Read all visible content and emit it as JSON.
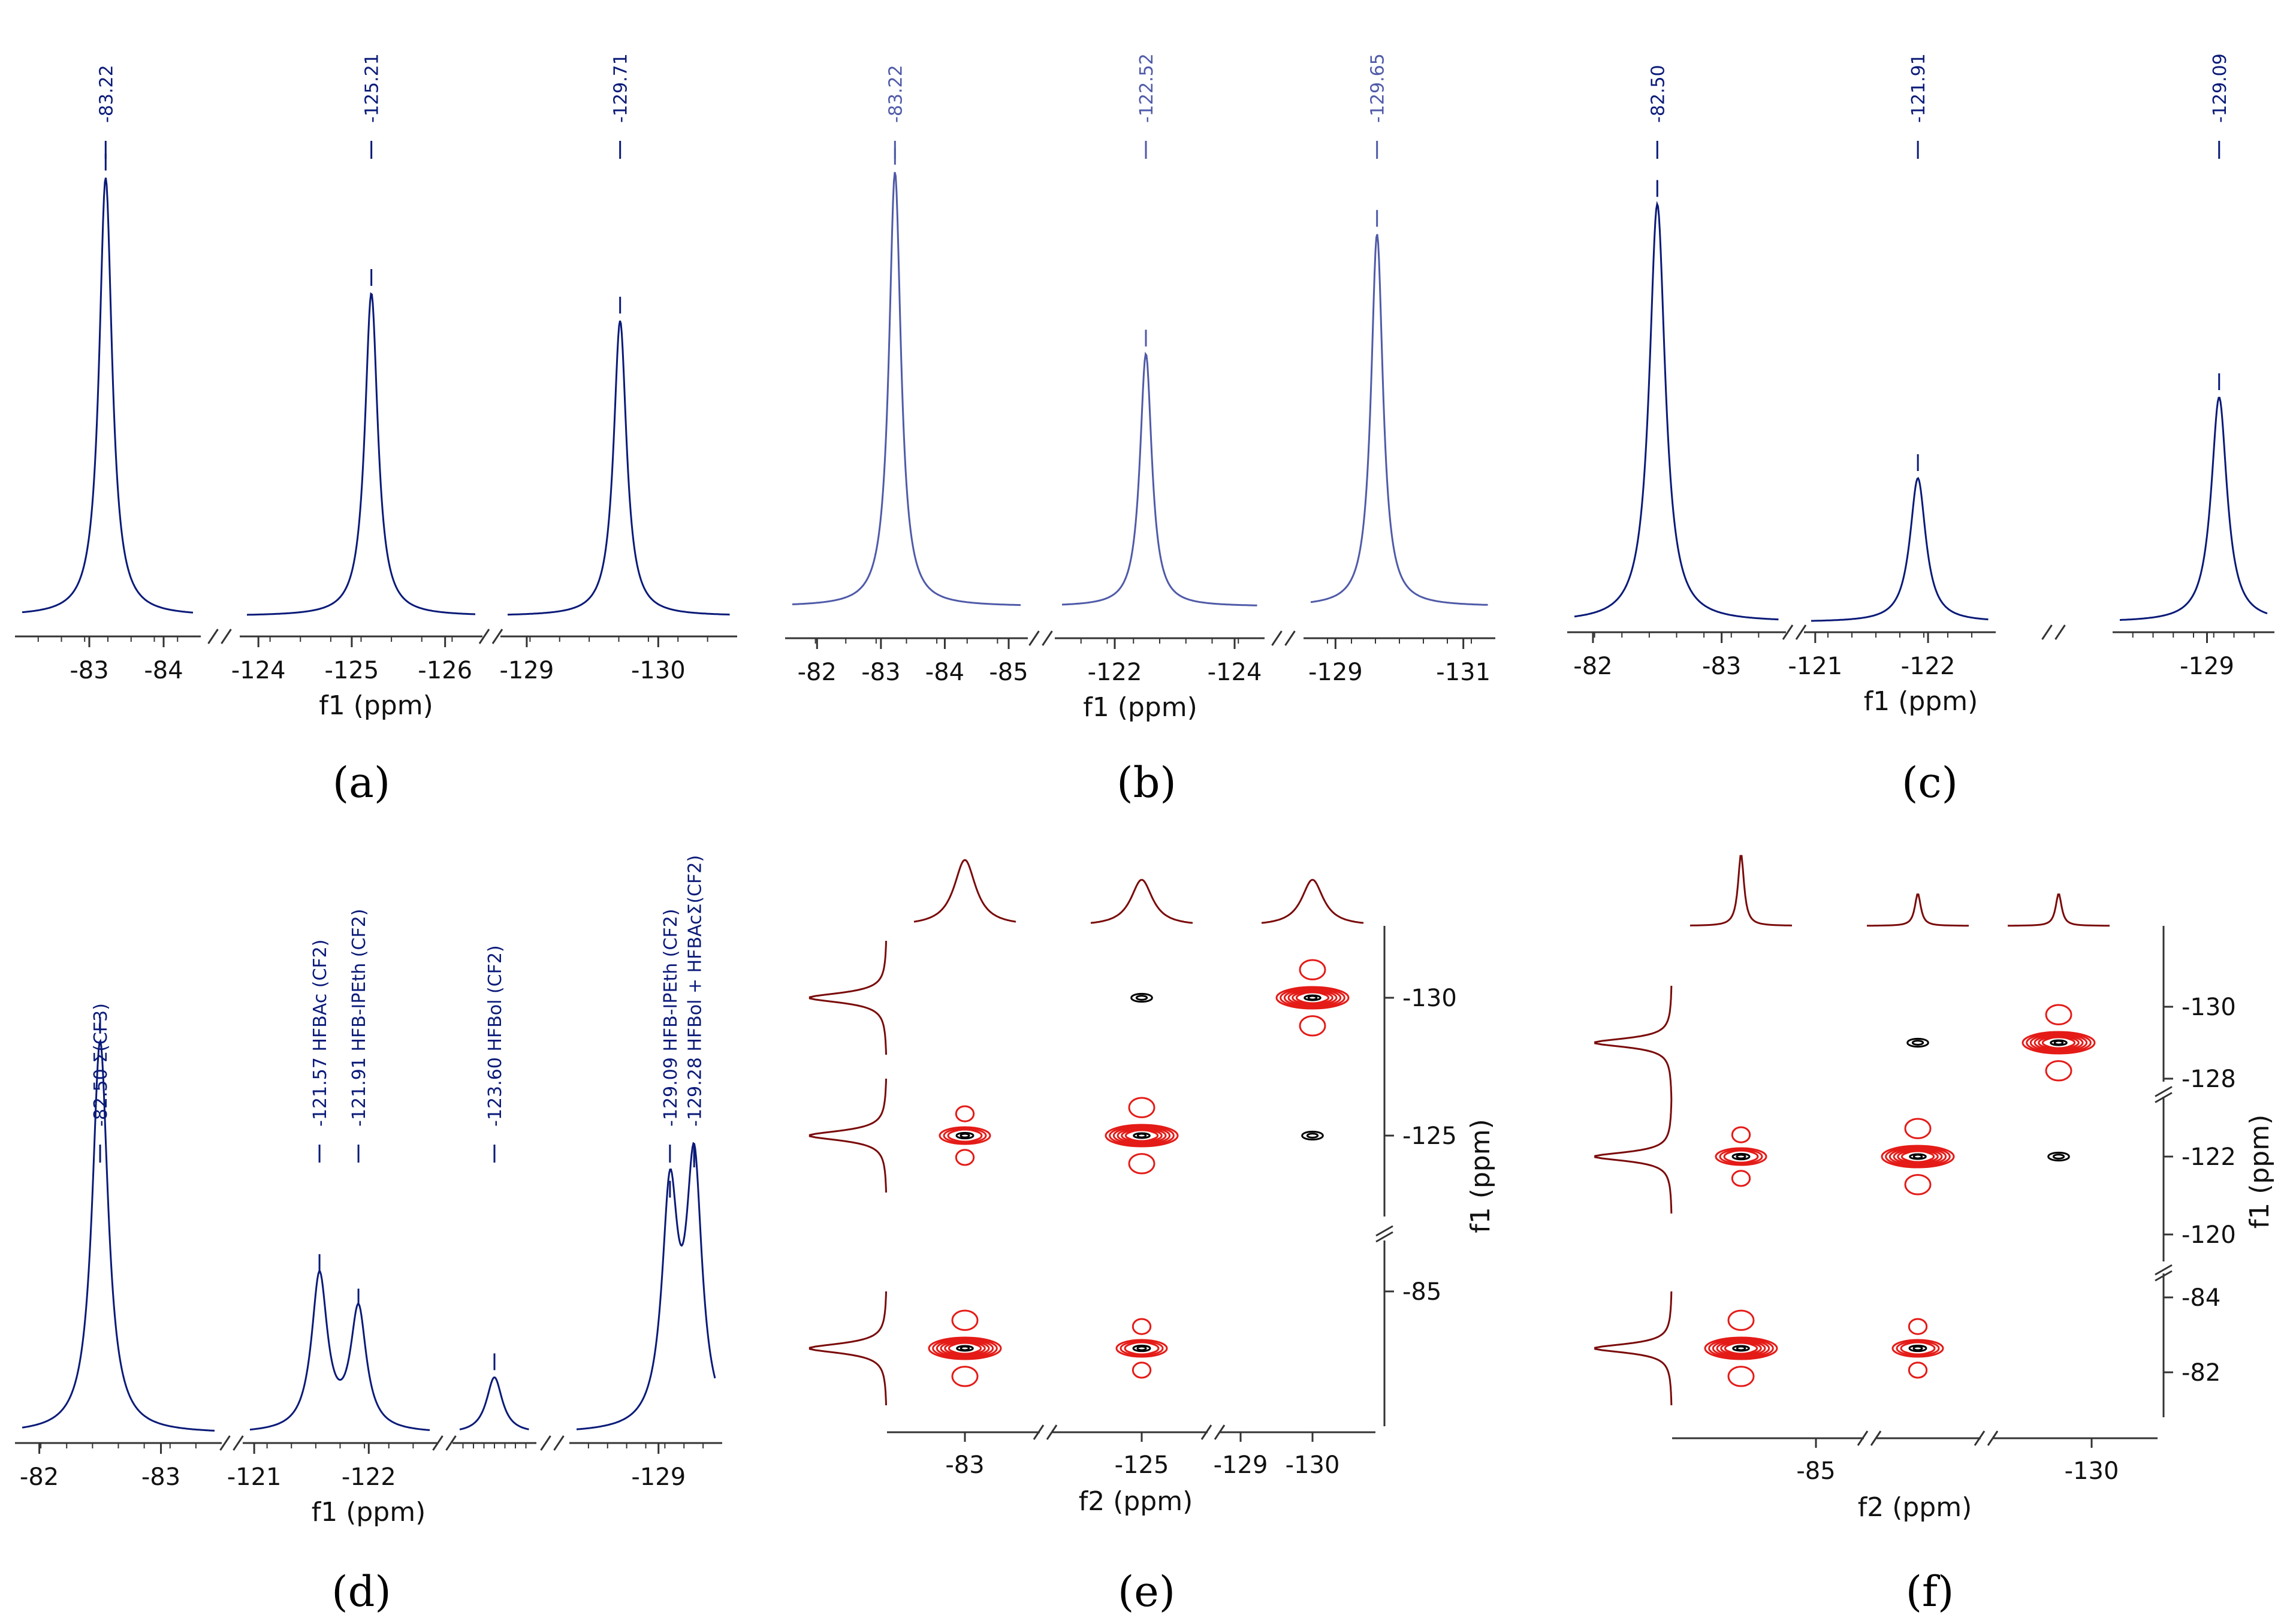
{
  "colors": {
    "spectrum_dark": "#0a1a78",
    "spectrum_light": "#4f5aa8",
    "contour": "#e41b17",
    "projection": "#7a0a0a",
    "axis": "#333333"
  },
  "chart_data": [
    {
      "type": "line",
      "panel": "(a)",
      "axis_label": "f1 (ppm)",
      "segments": [
        {
          "range": [
            -82.0,
            -84.5
          ],
          "ticks": [
            -83,
            -84
          ]
        },
        {
          "range": [
            -123.8,
            -126.4
          ],
          "ticks": [
            -124,
            -125,
            -126
          ]
        },
        {
          "range": [
            -128.8,
            -130.6
          ],
          "ticks": [
            -129,
            -130
          ]
        }
      ],
      "peaks": [
        {
          "ppm": -83.22,
          "height": 0.95,
          "label": "-83.22"
        },
        {
          "ppm": -125.21,
          "height": 0.7,
          "label": "-125.21"
        },
        {
          "ppm": -129.71,
          "height": 0.64,
          "label": "-129.71"
        }
      ]
    },
    {
      "type": "line",
      "panel": "(b)",
      "axis_label": "f1 (ppm)",
      "segments": [
        {
          "range": [
            -81.5,
            -85.3
          ],
          "ticks": [
            -82,
            -83,
            -84,
            -85
          ]
        },
        {
          "range": [
            -121.0,
            -124.5
          ],
          "ticks": [
            -122,
            -124
          ]
        },
        {
          "range": [
            -128.5,
            -131.5
          ],
          "ticks": [
            -129,
            -131
          ]
        }
      ],
      "peaks": [
        {
          "ppm": -83.22,
          "height": 0.98,
          "label": "-83.22"
        },
        {
          "ppm": -122.52,
          "height": 0.57,
          "label": "-122.52"
        },
        {
          "ppm": -129.65,
          "height": 0.84,
          "label": "-129.65"
        }
      ]
    },
    {
      "type": "line",
      "panel": "(c)",
      "axis_label": "f1 (ppm)",
      "segments": [
        {
          "range": [
            -81.8,
            -83.5
          ],
          "ticks": [
            -82,
            -83
          ]
        },
        {
          "range": [
            -120.9,
            -122.6
          ],
          "ticks": [
            -121,
            -122
          ]
        },
        {
          "range": [
            -128.3,
            -129.5
          ],
          "ticks": [
            -129
          ]
        }
      ],
      "peaks": [
        {
          "ppm": -82.5,
          "height": 0.93,
          "label": "-82.50"
        },
        {
          "ppm": -121.91,
          "height": 0.32,
          "label": "-121.91"
        },
        {
          "ppm": -129.09,
          "height": 0.5,
          "label": "-129.09"
        }
      ]
    },
    {
      "type": "line",
      "panel": "(d)",
      "axis_label": "f1 (ppm)",
      "segments": [
        {
          "range": [
            -81.8,
            -83.5
          ],
          "ticks": [
            -82,
            -83
          ]
        },
        {
          "range": [
            -120.9,
            -122.6
          ],
          "ticks": [
            -121,
            -122
          ]
        },
        {
          "range": [
            -123.2,
            -124.0
          ],
          "ticks": []
        },
        {
          "range": [
            -128.3,
            -129.5
          ],
          "ticks": [
            -129
          ]
        }
      ],
      "peaks": [
        {
          "ppm": -82.5,
          "height": 0.91,
          "label": "-82.50 Σ(CF3)"
        },
        {
          "ppm": -121.57,
          "height": 0.36,
          "label": "-121.57 HFBAc (CF2)"
        },
        {
          "ppm": -121.91,
          "height": 0.28,
          "label": "-121.91 HFB-IPEth (CF2)"
        },
        {
          "ppm": -123.6,
          "height": 0.13,
          "label": "-123.60 HFBol (CF2)"
        },
        {
          "ppm": -129.09,
          "height": 0.53,
          "label": "-129.09 HFB-IPEth (CF2)"
        },
        {
          "ppm": -129.28,
          "height": 0.6,
          "label": "-129.28 HFBol + HFBAcΣ(CF2)"
        }
      ]
    },
    {
      "type": "heatmap",
      "panel": "(e)",
      "xlabel": "f2 (ppm)",
      "ylabel": "f1 (ppm)",
      "x_ticks": [
        "-83",
        "-125",
        "-129",
        "-130"
      ],
      "y_ticks": [
        "-130",
        "-125",
        "-85"
      ],
      "cross_peaks": [
        {
          "f2": -83,
          "f1": -83,
          "intensity": "strong"
        },
        {
          "f2": -125,
          "f1": -83,
          "intensity": "medium"
        },
        {
          "f2": -83,
          "f1": -125,
          "intensity": "medium"
        },
        {
          "f2": -125,
          "f1": -125,
          "intensity": "strong"
        },
        {
          "f2": -130,
          "f1": -125,
          "intensity": "weak"
        },
        {
          "f2": -125,
          "f1": -130,
          "intensity": "weak"
        },
        {
          "f2": -130,
          "f1": -130,
          "intensity": "strong"
        }
      ]
    },
    {
      "type": "heatmap",
      "panel": "(f)",
      "xlabel": "f2 (ppm)",
      "ylabel": "f1 (ppm)",
      "x_ticks": [
        "-85",
        "-130"
      ],
      "y_ticks": [
        "-130",
        "-128",
        "-122",
        "-120",
        "-84",
        "-82"
      ],
      "cross_peaks": [
        {
          "f2": -83,
          "f1": -83,
          "intensity": "strong"
        },
        {
          "f2": -122,
          "f1": -83,
          "intensity": "medium"
        },
        {
          "f2": -83,
          "f1": -122,
          "intensity": "medium"
        },
        {
          "f2": -122,
          "f1": -122,
          "intensity": "strong"
        },
        {
          "f2": -129,
          "f1": -122,
          "intensity": "weak"
        },
        {
          "f2": -122,
          "f1": -129,
          "intensity": "weak"
        },
        {
          "f2": -129,
          "f1": -129,
          "intensity": "strong"
        }
      ]
    }
  ]
}
